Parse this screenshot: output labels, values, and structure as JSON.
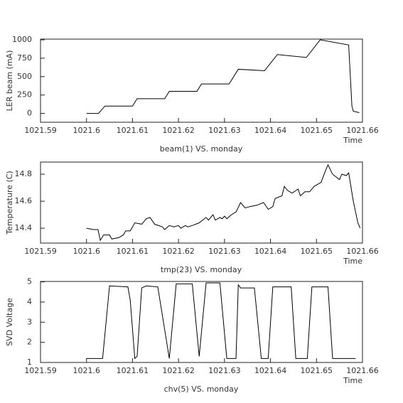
{
  "chart_data": [
    {
      "type": "line",
      "title": "beam(1) VS. monday",
      "xlabel": "Time",
      "ylabel": "LER beam (mA)",
      "color": "#000000",
      "x": [
        1021.6,
        1021.6026,
        1021.604,
        1021.61,
        1021.611,
        1021.617,
        1021.618,
        1021.624,
        1021.625,
        1021.631,
        1021.633,
        1021.6387,
        1021.6415,
        1021.6478,
        1021.6508,
        1021.657,
        1021.6577,
        1021.658,
        1021.6593
      ],
      "values": [
        0,
        0,
        100,
        100,
        200,
        200,
        300,
        300,
        400,
        400,
        600,
        580,
        800,
        760,
        1000,
        930,
        100,
        30,
        10
      ],
      "xlim": [
        1021.59,
        1021.66
      ],
      "xticks": [
        1021.59,
        1021.6,
        1021.61,
        1021.62,
        1021.63,
        1021.64,
        1021.65,
        1021.66
      ],
      "ylim": [
        -120,
        1010
      ],
      "yticks": [
        0,
        250,
        500,
        750,
        1000
      ]
    },
    {
      "type": "line",
      "title": "tmp(23) VS. monday",
      "xlabel": "Time",
      "ylabel": "Temperature (C)",
      "color": "#000000",
      "x": [
        1021.6,
        1021.6015,
        1021.6025,
        1021.603,
        1021.6037,
        1021.605,
        1021.6055,
        1021.607,
        1021.608,
        1021.6085,
        1021.6095,
        1021.6105,
        1021.612,
        1021.613,
        1021.6138,
        1021.6148,
        1021.6165,
        1021.617,
        1021.618,
        1021.619,
        1021.62,
        1021.6205,
        1021.6215,
        1021.622,
        1021.623,
        1021.6245,
        1021.626,
        1021.6265,
        1021.6275,
        1021.628,
        1021.629,
        1021.6295,
        1021.63,
        1021.6305,
        1021.6315,
        1021.6325,
        1021.6335,
        1021.6345,
        1021.6355,
        1021.637,
        1021.6385,
        1021.6395,
        1021.6405,
        1021.641,
        1021.6425,
        1021.643,
        1021.6437,
        1021.6447,
        1021.646,
        1021.6465,
        1021.6475,
        1021.6485,
        1021.6495,
        1021.651,
        1021.652,
        1021.6525,
        1021.6535,
        1021.655,
        1021.6555,
        1021.6565,
        1021.657,
        1021.658,
        1021.659,
        1021.6595
      ],
      "values": [
        14.4,
        14.39,
        14.39,
        14.31,
        14.35,
        14.35,
        14.32,
        14.33,
        14.35,
        14.38,
        14.38,
        14.44,
        14.43,
        14.47,
        14.48,
        14.43,
        14.41,
        14.39,
        14.42,
        14.41,
        14.42,
        14.4,
        14.42,
        14.41,
        14.42,
        14.44,
        14.48,
        14.46,
        14.5,
        14.46,
        14.48,
        14.47,
        14.49,
        14.47,
        14.5,
        14.52,
        14.59,
        14.55,
        14.56,
        14.57,
        14.59,
        14.54,
        14.56,
        14.62,
        14.64,
        14.71,
        14.68,
        14.66,
        14.69,
        14.64,
        14.67,
        14.67,
        14.71,
        14.74,
        14.83,
        14.87,
        14.8,
        14.76,
        14.8,
        14.79,
        14.81,
        14.6,
        14.44,
        14.4
      ],
      "xlim": [
        1021.59,
        1021.66
      ],
      "xticks": [
        1021.59,
        1021.6,
        1021.61,
        1021.62,
        1021.63,
        1021.64,
        1021.65,
        1021.66
      ],
      "ylim": [
        14.29,
        14.89
      ],
      "yticks": [
        14.4,
        14.6,
        14.8
      ]
    },
    {
      "type": "line",
      "title": "chv(5) VS. monday",
      "xlabel": "Time",
      "ylabel": "SVD Voltage",
      "color": "#000000",
      "x": [
        1021.6,
        1021.6035,
        1021.605,
        1021.609,
        1021.6095,
        1021.6105,
        1021.611,
        1021.612,
        1021.613,
        1021.6155,
        1021.618,
        1021.6195,
        1021.623,
        1021.6245,
        1021.626,
        1021.629,
        1021.6305,
        1021.6325,
        1021.633,
        1021.6335,
        1021.6365,
        1021.638,
        1021.6395,
        1021.6405,
        1021.6445,
        1021.6455,
        1021.648,
        1021.649,
        1021.6525,
        1021.6535,
        1021.6585
      ],
      "values": [
        1.2,
        1.2,
        4.8,
        4.75,
        4.1,
        1.2,
        1.3,
        4.7,
        4.8,
        4.75,
        1.2,
        4.9,
        4.9,
        1.3,
        4.95,
        4.95,
        1.2,
        1.2,
        4.85,
        4.7,
        4.7,
        1.2,
        1.2,
        4.75,
        4.75,
        1.2,
        1.2,
        4.75,
        4.75,
        1.2,
        1.2
      ],
      "xlim": [
        1021.59,
        1021.66
      ],
      "xticks": [
        1021.59,
        1021.6,
        1021.61,
        1021.62,
        1021.63,
        1021.64,
        1021.65,
        1021.66
      ],
      "ylim": [
        1,
        5.02
      ],
      "yticks": [
        1,
        2,
        3,
        4,
        5
      ]
    }
  ]
}
